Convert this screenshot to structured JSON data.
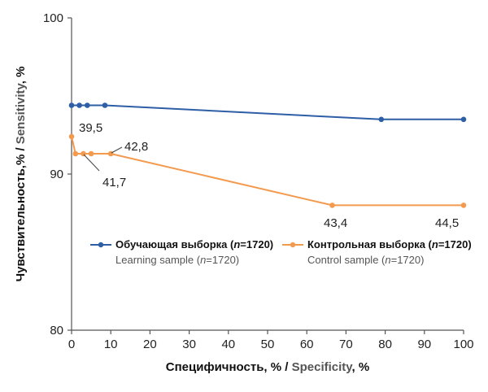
{
  "colors": {
    "learning": "#2d5ea6",
    "control": "#f39a4e",
    "axis": "#555555"
  },
  "chart_data": {
    "type": "line",
    "x_axis": {
      "title_ru": "Специфичность, % / ",
      "title_en": "Specificity",
      "title_unit": ", %",
      "range": [
        0,
        100
      ],
      "ticks": [
        "0",
        "10",
        "20",
        "30",
        "40",
        "50",
        "60",
        "70",
        "80",
        "90",
        "100"
      ]
    },
    "y_axis": {
      "title_ru": "Чувствительность,% / ",
      "title_en": "Sensitivity",
      "title_unit": ", %",
      "range": [
        80,
        100
      ],
      "ticks": [
        "80",
        "90",
        "100"
      ]
    },
    "grid": false,
    "series": [
      {
        "name": "Обучающая выборка (n=1720)",
        "name_main": "Обучающая выборка (",
        "name_n": "n",
        "name_close": "=1720)",
        "sub_main": "Learning sample (",
        "sub_n": "n",
        "sub_close": "=1720)",
        "key": "learning",
        "x": [
          0,
          2,
          4,
          8.5,
          79,
          100
        ],
        "y": [
          94.4,
          94.4,
          94.4,
          94.4,
          93.5,
          93.5
        ]
      },
      {
        "name": "Контрольная выборка (n=1720)",
        "name_main": "Контрольная выборка (",
        "name_n": "n",
        "name_close": "=1720)",
        "sub_main": "Control sample (",
        "sub_n": "n",
        "sub_close": "=1720)",
        "key": "control",
        "x": [
          0,
          1,
          3,
          5,
          10,
          66.5,
          100
        ],
        "y": [
          92.4,
          91.3,
          91.3,
          91.3,
          91.3,
          88.0,
          88.0
        ]
      }
    ],
    "annotations": [
      "39,5",
      "42,8",
      "41,7",
      "43,4",
      "44,5"
    ]
  }
}
